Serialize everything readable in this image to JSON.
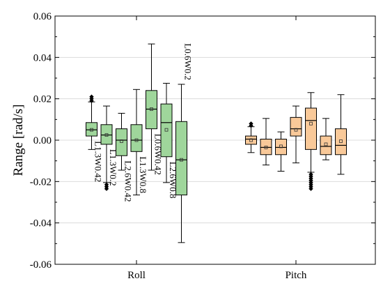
{
  "chart_data": {
    "type": "box",
    "ylabel": "Range [rad/s]",
    "ylim": [
      -0.06,
      0.06
    ],
    "yticks": [
      "-0.06",
      "-0.04",
      "-0.02",
      "0.00",
      "0.02",
      "0.04",
      "0.06"
    ],
    "ytick_values": [
      -0.06,
      -0.04,
      -0.02,
      0.0,
      0.02,
      0.04,
      0.06
    ],
    "categories": [
      "Roll",
      "Pitch"
    ],
    "colors": {
      "Roll": "#9fd69b",
      "Pitch": "#f9c999"
    },
    "groups": [
      {
        "category": "Roll",
        "boxes": [
          {
            "label": "L1.3W0.42",
            "whisker_low": -0.0045,
            "q1": 0.002,
            "median": 0.005,
            "q3": 0.0085,
            "whisker_high": 0.0185,
            "mean": 0.005,
            "outliers": [
              0.019,
              0.02,
              0.021
            ]
          },
          {
            "label": "L1.3W0.2",
            "whisker_low": -0.0205,
            "q1": -0.002,
            "median": 0.0025,
            "q3": 0.0075,
            "whisker_high": 0.0165,
            "mean": 0.0025,
            "outliers": [
              -0.0215,
              -0.0225,
              -0.0235
            ]
          },
          {
            "label": "L2.6W0.42",
            "whisker_low": -0.0145,
            "q1": -0.0075,
            "median": 0.0,
            "q3": 0.0055,
            "whisker_high": 0.013,
            "mean": -0.0005,
            "outliers": []
          },
          {
            "label": "L1.3W0.8",
            "whisker_low": -0.0265,
            "q1": -0.0055,
            "median": 0.0,
            "q3": 0.0075,
            "whisker_high": 0.0245,
            "mean": 0.0,
            "outliers": []
          },
          {
            "label": "L0.6W0.42",
            "whisker_low": -0.0145,
            "q1": 0.0055,
            "median": 0.015,
            "q3": 0.024,
            "whisker_high": 0.0465,
            "mean": 0.015,
            "outliers": []
          },
          {
            "label": "L2.6W0.8",
            "whisker_low": -0.0205,
            "q1": -0.008,
            "median": 0.0085,
            "q3": 0.0175,
            "whisker_high": 0.0275,
            "mean": 0.005,
            "outliers": []
          },
          {
            "label": "L0.6W0.2",
            "whisker_low": -0.0495,
            "q1": -0.0265,
            "median": -0.0095,
            "q3": 0.009,
            "whisker_high": 0.027,
            "mean": -0.0095,
            "outliers": []
          }
        ]
      },
      {
        "category": "Pitch",
        "boxes": [
          {
            "label": "",
            "whisker_low": -0.006,
            "q1": -0.002,
            "median": 0.0005,
            "q3": 0.002,
            "whisker_high": 0.0065,
            "mean": 0.0,
            "outliers": [
              0.007,
              0.008
            ]
          },
          {
            "label": "",
            "whisker_low": -0.012,
            "q1": -0.007,
            "median": -0.0035,
            "q3": 0.0005,
            "whisker_high": 0.0105,
            "mean": -0.0035,
            "outliers": []
          },
          {
            "label": "",
            "whisker_low": -0.015,
            "q1": -0.007,
            "median": -0.0035,
            "q3": 0.0005,
            "whisker_high": 0.004,
            "mean": -0.003,
            "outliers": []
          },
          {
            "label": "",
            "whisker_low": -0.011,
            "q1": 0.002,
            "median": 0.0055,
            "q3": 0.011,
            "whisker_high": 0.0165,
            "mean": 0.005,
            "outliers": []
          },
          {
            "label": "",
            "whisker_low": -0.0155,
            "q1": -0.0045,
            "median": 0.0095,
            "q3": 0.0155,
            "whisker_high": 0.023,
            "mean": 0.008,
            "outliers": [
              -0.0165,
              -0.0175,
              -0.0185,
              -0.0195,
              -0.0205,
              -0.0215,
              -0.0225,
              -0.0235
            ]
          },
          {
            "label": "",
            "whisker_low": -0.0095,
            "q1": -0.007,
            "median": -0.003,
            "q3": 0.002,
            "whisker_high": 0.0105,
            "mean": -0.002,
            "outliers": []
          },
          {
            "label": "",
            "whisker_low": -0.0165,
            "q1": -0.007,
            "median": -0.0025,
            "q3": 0.0055,
            "whisker_high": 0.022,
            "mean": -0.0005,
            "outliers": []
          }
        ]
      }
    ]
  }
}
